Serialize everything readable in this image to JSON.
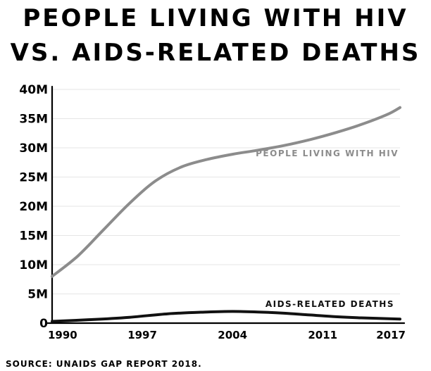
{
  "title_line1": "PEOPLE LIVING WITH HIV",
  "title_line2": "VS. AIDS-RELATED DEATHS",
  "source": "SOURCE: UNAIDS GAP REPORT 2018.",
  "colors": {
    "plhiv": "#8c8c8c",
    "deaths": "#111111",
    "grid": "#e6e6e6",
    "axis": "#000000"
  },
  "chart_data": {
    "type": "line",
    "title": "PEOPLE LIVING WITH HIV VS. AIDS-RELATED DEATHS",
    "x_ticks": [
      "1990",
      "1997",
      "2004",
      "2011",
      "2017"
    ],
    "xlim": [
      1990,
      2017
    ],
    "y_ticks": [
      "0",
      "5M",
      "10M",
      "15M",
      "20M",
      "25M",
      "30M",
      "35M",
      "40M"
    ],
    "ylim": [
      0,
      40000000
    ],
    "grid": true,
    "series": [
      {
        "name": "PEOPLE LIVING WITH HIV",
        "x": [
          1990,
          1992,
          1994,
          1996,
          1998,
          2000,
          2002,
          2004,
          2006,
          2008,
          2010,
          2012,
          2014,
          2016,
          2017
        ],
        "values": [
          8000000,
          11500000,
          16000000,
          20500000,
          24300000,
          26700000,
          28000000,
          28900000,
          29600000,
          30400000,
          31400000,
          32600000,
          34000000,
          35700000,
          36900000
        ]
      },
      {
        "name": "AIDS-RELATED DEATHS",
        "x": [
          1990,
          1993,
          1996,
          1999,
          2002,
          2004,
          2006,
          2008,
          2010,
          2012,
          2014,
          2017
        ],
        "values": [
          300000,
          600000,
          1000000,
          1600000,
          1900000,
          2000000,
          1900000,
          1700000,
          1400000,
          1100000,
          900000,
          700000
        ]
      }
    ]
  }
}
